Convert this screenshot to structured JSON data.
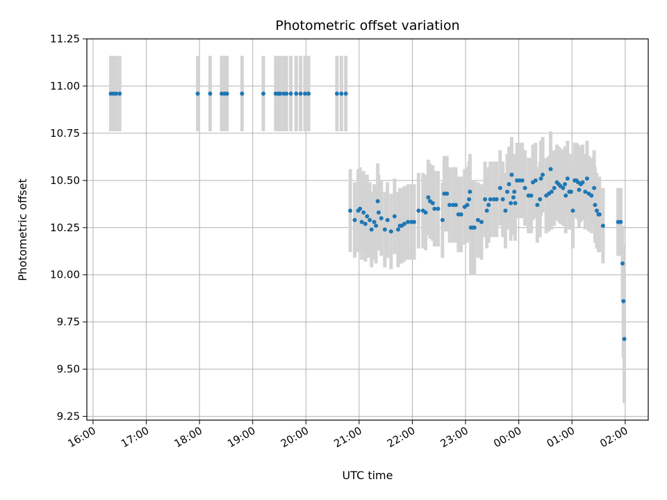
{
  "chart_data": {
    "type": "scatter",
    "title": "Photometric offset variation",
    "xlabel": "UTC time",
    "ylabel": "Photometric offset",
    "grid": true,
    "x_unit": "UTC time (HH:MM, 16:00 to 02:00 next day)",
    "xlim": [
      "15:53",
      "02:26"
    ],
    "ylim": [
      9.23,
      11.25
    ],
    "xticks": [
      "16:00",
      "17:00",
      "18:00",
      "19:00",
      "20:00",
      "21:00",
      "22:00",
      "23:00",
      "00:00",
      "01:00",
      "02:00"
    ],
    "yticks": [
      "9.25",
      "9.50",
      "9.75",
      "10.00",
      "10.25",
      "10.50",
      "10.75",
      "11.00",
      "11.25"
    ],
    "marker_color": "#1f77b4",
    "errorbar_color": "#d3d3d3",
    "series": [
      {
        "points": [
          {
            "t": "16:20",
            "y": 10.96,
            "e": 0.2
          },
          {
            "t": "16:23",
            "y": 10.96,
            "e": 0.2
          },
          {
            "t": "16:26",
            "y": 10.96,
            "e": 0.2
          },
          {
            "t": "16:30",
            "y": 10.96,
            "e": 0.2
          },
          {
            "t": "17:58",
            "y": 10.96,
            "e": 0.2
          },
          {
            "t": "18:12",
            "y": 10.96,
            "e": 0.2
          },
          {
            "t": "18:25",
            "y": 10.96,
            "e": 0.2
          },
          {
            "t": "18:28",
            "y": 10.96,
            "e": 0.2
          },
          {
            "t": "18:31",
            "y": 10.96,
            "e": 0.2
          },
          {
            "t": "18:48",
            "y": 10.96,
            "e": 0.2
          },
          {
            "t": "19:12",
            "y": 10.96,
            "e": 0.2
          },
          {
            "t": "19:26",
            "y": 10.96,
            "e": 0.2
          },
          {
            "t": "19:29",
            "y": 10.96,
            "e": 0.2
          },
          {
            "t": "19:31",
            "y": 10.96,
            "e": 0.2
          },
          {
            "t": "19:35",
            "y": 10.96,
            "e": 0.2
          },
          {
            "t": "19:38",
            "y": 10.96,
            "e": 0.2
          },
          {
            "t": "19:43",
            "y": 10.96,
            "e": 0.2
          },
          {
            "t": "19:49",
            "y": 10.96,
            "e": 0.2
          },
          {
            "t": "19:54",
            "y": 10.96,
            "e": 0.2
          },
          {
            "t": "19:59",
            "y": 10.96,
            "e": 0.2
          },
          {
            "t": "20:03",
            "y": 10.96,
            "e": 0.2
          },
          {
            "t": "20:35",
            "y": 10.96,
            "e": 0.2
          },
          {
            "t": "20:40",
            "y": 10.96,
            "e": 0.2
          },
          {
            "t": "20:45",
            "y": 10.96,
            "e": 0.2
          },
          {
            "t": "20:50",
            "y": 10.34,
            "e": 0.22
          },
          {
            "t": "20:55",
            "y": 10.29,
            "e": 0.2
          },
          {
            "t": "20:59",
            "y": 10.34,
            "e": 0.22
          },
          {
            "t": "21:01",
            "y": 10.35,
            "e": 0.22
          },
          {
            "t": "21:03",
            "y": 10.28,
            "e": 0.2
          },
          {
            "t": "21:05",
            "y": 10.33,
            "e": 0.22
          },
          {
            "t": "21:07",
            "y": 10.27,
            "e": 0.2
          },
          {
            "t": "21:09",
            "y": 10.31,
            "e": 0.22
          },
          {
            "t": "21:12",
            "y": 10.29,
            "e": 0.2
          },
          {
            "t": "21:14",
            "y": 10.24,
            "e": 0.2
          },
          {
            "t": "21:17",
            "y": 10.28,
            "e": 0.2
          },
          {
            "t": "21:19",
            "y": 10.26,
            "e": 0.2
          },
          {
            "t": "21:21",
            "y": 10.39,
            "e": 0.2
          },
          {
            "t": "21:22",
            "y": 10.33,
            "e": 0.2
          },
          {
            "t": "21:25",
            "y": 10.3,
            "e": 0.2
          },
          {
            "t": "21:29",
            "y": 10.24,
            "e": 0.2
          },
          {
            "t": "21:32",
            "y": 10.29,
            "e": 0.2
          },
          {
            "t": "21:36",
            "y": 10.23,
            "e": 0.2
          },
          {
            "t": "21:40",
            "y": 10.31,
            "e": 0.2
          },
          {
            "t": "21:44",
            "y": 10.24,
            "e": 0.2
          },
          {
            "t": "21:46",
            "y": 10.26,
            "e": 0.2
          },
          {
            "t": "21:48",
            "y": 10.26,
            "e": 0.2
          },
          {
            "t": "21:51",
            "y": 10.27,
            "e": 0.2
          },
          {
            "t": "21:55",
            "y": 10.28,
            "e": 0.2
          },
          {
            "t": "21:59",
            "y": 10.28,
            "e": 0.2
          },
          {
            "t": "22:02",
            "y": 10.28,
            "e": 0.2
          },
          {
            "t": "22:07",
            "y": 10.34,
            "e": 0.2
          },
          {
            "t": "22:12",
            "y": 10.34,
            "e": 0.2
          },
          {
            "t": "22:15",
            "y": 10.33,
            "e": 0.2
          },
          {
            "t": "22:18",
            "y": 10.41,
            "e": 0.2
          },
          {
            "t": "22:20",
            "y": 10.39,
            "e": 0.2
          },
          {
            "t": "22:23",
            "y": 10.38,
            "e": 0.2
          },
          {
            "t": "22:25",
            "y": 10.35,
            "e": 0.2
          },
          {
            "t": "22:29",
            "y": 10.35,
            "e": 0.2
          },
          {
            "t": "22:34",
            "y": 10.29,
            "e": 0.2
          },
          {
            "t": "22:36",
            "y": 10.43,
            "e": 0.2
          },
          {
            "t": "22:39",
            "y": 10.43,
            "e": 0.2
          },
          {
            "t": "22:42",
            "y": 10.37,
            "e": 0.2
          },
          {
            "t": "22:46",
            "y": 10.37,
            "e": 0.2
          },
          {
            "t": "22:49",
            "y": 10.37,
            "e": 0.2
          },
          {
            "t": "22:52",
            "y": 10.32,
            "e": 0.2
          },
          {
            "t": "22:55",
            "y": 10.32,
            "e": 0.2
          },
          {
            "t": "22:59",
            "y": 10.36,
            "e": 0.2
          },
          {
            "t": "23:02",
            "y": 10.37,
            "e": 0.2
          },
          {
            "t": "23:04",
            "y": 10.4,
            "e": 0.2
          },
          {
            "t": "23:05",
            "y": 10.44,
            "e": 0.2
          },
          {
            "t": "23:06",
            "y": 10.25,
            "e": 0.25
          },
          {
            "t": "23:08",
            "y": 10.25,
            "e": 0.25
          },
          {
            "t": "23:10",
            "y": 10.25,
            "e": 0.25
          },
          {
            "t": "23:14",
            "y": 10.29,
            "e": 0.2
          },
          {
            "t": "23:18",
            "y": 10.28,
            "e": 0.2
          },
          {
            "t": "23:22",
            "y": 10.4,
            "e": 0.2
          },
          {
            "t": "23:24",
            "y": 10.34,
            "e": 0.2
          },
          {
            "t": "23:26",
            "y": 10.37,
            "e": 0.2
          },
          {
            "t": "23:28",
            "y": 10.4,
            "e": 0.2
          },
          {
            "t": "23:32",
            "y": 10.4,
            "e": 0.2
          },
          {
            "t": "23:35",
            "y": 10.4,
            "e": 0.2
          },
          {
            "t": "23:39",
            "y": 10.46,
            "e": 0.2
          },
          {
            "t": "23:42",
            "y": 10.4,
            "e": 0.2
          },
          {
            "t": "23:45",
            "y": 10.34,
            "e": 0.2
          },
          {
            "t": "23:47",
            "y": 10.44,
            "e": 0.2
          },
          {
            "t": "23:49",
            "y": 10.48,
            "e": 0.2
          },
          {
            "t": "23:51",
            "y": 10.38,
            "e": 0.2
          },
          {
            "t": "23:52",
            "y": 10.53,
            "e": 0.2
          },
          {
            "t": "23:54",
            "y": 10.41,
            "e": 0.2
          },
          {
            "t": "23:55",
            "y": 10.44,
            "e": 0.2
          },
          {
            "t": "23:56",
            "y": 10.38,
            "e": 0.2
          },
          {
            "t": "23:58",
            "y": 10.5,
            "e": 0.2
          },
          {
            "t": "00:01",
            "y": 10.5,
            "e": 0.2
          },
          {
            "t": "00:04",
            "y": 10.5,
            "e": 0.2
          },
          {
            "t": "00:07",
            "y": 10.46,
            "e": 0.2
          },
          {
            "t": "00:11",
            "y": 10.42,
            "e": 0.2
          },
          {
            "t": "00:14",
            "y": 10.42,
            "e": 0.2
          },
          {
            "t": "00:16",
            "y": 10.49,
            "e": 0.2
          },
          {
            "t": "00:19",
            "y": 10.5,
            "e": 0.2
          },
          {
            "t": "00:21",
            "y": 10.37,
            "e": 0.2
          },
          {
            "t": "00:24",
            "y": 10.4,
            "e": 0.2
          },
          {
            "t": "00:25",
            "y": 10.51,
            "e": 0.2
          },
          {
            "t": "00:27",
            "y": 10.53,
            "e": 0.2
          },
          {
            "t": "00:31",
            "y": 10.42,
            "e": 0.2
          },
          {
            "t": "00:34",
            "y": 10.43,
            "e": 0.2
          },
          {
            "t": "00:36",
            "y": 10.56,
            "e": 0.2
          },
          {
            "t": "00:37",
            "y": 10.44,
            "e": 0.2
          },
          {
            "t": "00:40",
            "y": 10.46,
            "e": 0.2
          },
          {
            "t": "00:43",
            "y": 10.49,
            "e": 0.2
          },
          {
            "t": "00:45",
            "y": 10.48,
            "e": 0.2
          },
          {
            "t": "00:47",
            "y": 10.47,
            "e": 0.2
          },
          {
            "t": "00:50",
            "y": 10.46,
            "e": 0.2
          },
          {
            "t": "00:52",
            "y": 10.48,
            "e": 0.2
          },
          {
            "t": "00:53",
            "y": 10.42,
            "e": 0.2
          },
          {
            "t": "00:55",
            "y": 10.51,
            "e": 0.2
          },
          {
            "t": "00:57",
            "y": 10.44,
            "e": 0.2
          },
          {
            "t": "00:59",
            "y": 10.44,
            "e": 0.2
          },
          {
            "t": "01:01",
            "y": 10.34,
            "e": 0.2
          },
          {
            "t": "01:03",
            "y": 10.5,
            "e": 0.2
          },
          {
            "t": "01:05",
            "y": 10.5,
            "e": 0.2
          },
          {
            "t": "01:07",
            "y": 10.49,
            "e": 0.2
          },
          {
            "t": "01:08",
            "y": 10.45,
            "e": 0.2
          },
          {
            "t": "01:10",
            "y": 10.48,
            "e": 0.2
          },
          {
            "t": "01:12",
            "y": 10.49,
            "e": 0.2
          },
          {
            "t": "01:15",
            "y": 10.44,
            "e": 0.2
          },
          {
            "t": "01:17",
            "y": 10.51,
            "e": 0.2
          },
          {
            "t": "01:19",
            "y": 10.43,
            "e": 0.2
          },
          {
            "t": "01:22",
            "y": 10.42,
            "e": 0.2
          },
          {
            "t": "01:25",
            "y": 10.46,
            "e": 0.2
          },
          {
            "t": "01:26",
            "y": 10.37,
            "e": 0.2
          },
          {
            "t": "01:28",
            "y": 10.34,
            "e": 0.2
          },
          {
            "t": "01:30",
            "y": 10.32,
            "e": 0.2
          },
          {
            "t": "01:31",
            "y": 10.32,
            "e": 0.2
          },
          {
            "t": "01:35",
            "y": 10.26,
            "e": 0.2
          },
          {
            "t": "01:52",
            "y": 10.28,
            "e": 0.18
          },
          {
            "t": "01:55",
            "y": 10.28,
            "e": 0.18
          },
          {
            "t": "01:57",
            "y": 10.06,
            "e": 0.2
          },
          {
            "t": "01:58",
            "y": 9.86,
            "e": 0.3
          },
          {
            "t": "01:59",
            "y": 9.66,
            "e": 0.34
          }
        ]
      }
    ]
  }
}
